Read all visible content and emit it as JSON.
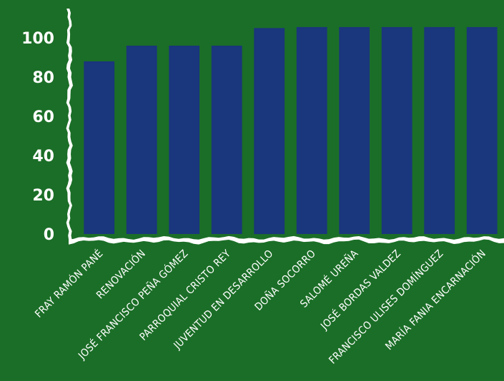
{
  "colors": {
    "background": "#1b6e27",
    "bar": "#1a367c",
    "axis": "#ffffff",
    "text": "#ffffff"
  },
  "chart_data": {
    "type": "bar",
    "title": "",
    "xlabel": "",
    "ylabel": "",
    "ylim": [
      0,
      110
    ],
    "yticks": [
      0,
      20,
      40,
      60,
      80,
      100
    ],
    "grid": false,
    "legend": "none",
    "categories": [
      "FRAY RAMÓN PANÉ",
      "RENOVACIÓN",
      "JOSÉ FRANCISCO PEÑA GÓMEZ",
      "PARROQUIAL CRISTO REY",
      "JUVENTUD EN DESARROLLO",
      "DOÑA SOCORRO",
      "SALOMÉ UREÑA",
      "JOSÉ BORDAS VALDEZ",
      "FRANCISCO ULISES DOMÍNGUEZ",
      "MARÍA FANIA ENCARNACIÓN"
    ],
    "values": [
      88,
      96,
      96,
      96,
      105,
      105.5,
      105.5,
      105.5,
      105.5,
      105.5
    ]
  }
}
